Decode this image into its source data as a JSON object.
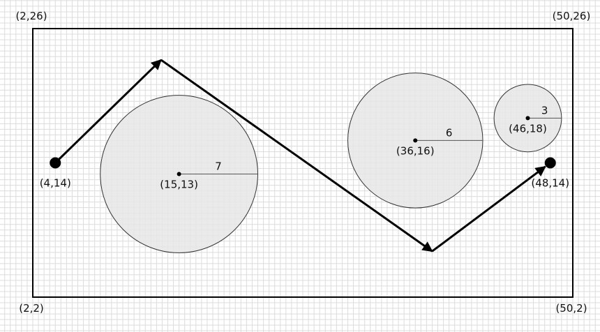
{
  "colors": {
    "grid": "#dcdcdc",
    "border": "#000000",
    "circle_fill": "#e6e6e6",
    "circle_stroke": "#333333",
    "path": "#000000"
  },
  "world": {
    "xmin": 2,
    "xmax": 50,
    "ymin": 2,
    "ymax": 26
  },
  "corners": [
    {
      "id": "tl",
      "label": "(2,26)"
    },
    {
      "id": "tr",
      "label": "(50,26)"
    },
    {
      "id": "bl",
      "label": "(2,2)"
    },
    {
      "id": "br",
      "label": "(50,2)"
    }
  ],
  "start": {
    "x": 4,
    "y": 14,
    "label": "(4,14)"
  },
  "goal": {
    "x": 48,
    "y": 14,
    "label": "(48,14)"
  },
  "path": [
    {
      "x": 4,
      "y": 14
    },
    {
      "x": 13.4,
      "y": 23.2
    },
    {
      "x": 37.5,
      "y": 6.1
    },
    {
      "x": 48,
      "y": 14
    }
  ],
  "obstacles": [
    {
      "cx": 15,
      "cy": 13,
      "r": 7,
      "center_label": "(15,13)",
      "radius_label": "7"
    },
    {
      "cx": 36,
      "cy": 16,
      "r": 6,
      "center_label": "(36,16)",
      "radius_label": "6"
    },
    {
      "cx": 46,
      "cy": 18,
      "r": 3,
      "center_label": "(46,18)",
      "radius_label": "3"
    }
  ]
}
